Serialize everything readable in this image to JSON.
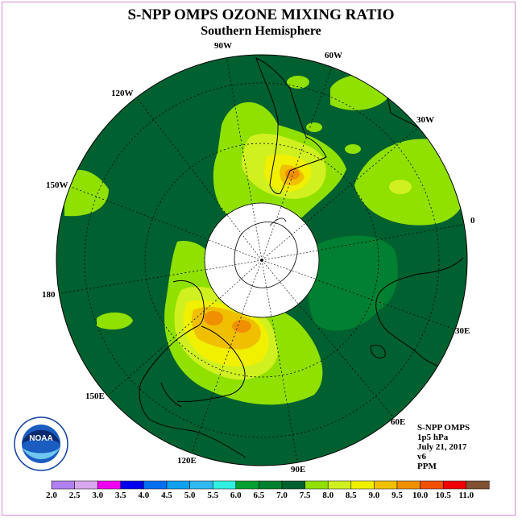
{
  "title": "S-NPP OMPS OZONE MIXING RATIO",
  "subtitle": "Southern Hemisphere",
  "longitude_labels": {
    "lon_90w": "90W",
    "lon_60w": "60W",
    "lon_120w": "120W",
    "lon_30w": "30W",
    "lon_150w": "150W",
    "lon_0": "0",
    "lon_180": "180",
    "lon_30e": "30E",
    "lon_150e": "150E",
    "lon_60e": "60E",
    "lon_120e": "120E",
    "lon_90e": "90E"
  },
  "info": {
    "instrument": "S-NPP OMPS",
    "level": "1p5 hPa",
    "date": "July 21, 2017",
    "version": "v6",
    "units": "PPM"
  },
  "logo_text": "NOAA",
  "colorbar": {
    "levels": [
      "2.0",
      "2.5",
      "3.0",
      "3.5",
      "4.0",
      "4.5",
      "5.0",
      "5.5",
      "6.0",
      "6.5",
      "7.0",
      "7.5",
      "8.0",
      "8.5",
      "9.0",
      "9.5",
      "10.0",
      "10.5",
      "11.0"
    ],
    "colors": [
      "#b080f0",
      "#d8a8f0",
      "#f000f0",
      "#0000f0",
      "#0070f0",
      "#10a0f0",
      "#30b8f0",
      "#30f0e0",
      "#00a030",
      "#008030",
      "#006030",
      "#90e000",
      "#d0f020",
      "#f0f000",
      "#f0c000",
      "#f09000",
      "#f05000",
      "#f00000",
      "#805030"
    ]
  }
}
